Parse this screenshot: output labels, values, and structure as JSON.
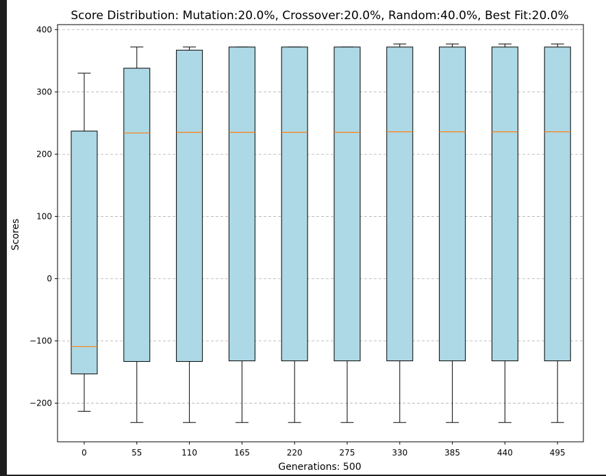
{
  "chart_data": {
    "type": "box",
    "title": "Score Distribution: Mutation:20.0%, Crossover:20.0%, Random:40.0%, Best Fit:20.0%",
    "xlabel": "Generations: 500",
    "ylabel": "Scores",
    "ylim": [
      -262,
      408
    ],
    "yticks": [
      400,
      300,
      200,
      100,
      0,
      -100,
      -200
    ],
    "ytick_labels": [
      "400",
      "300",
      "200",
      "100",
      "0",
      "−100",
      "−200"
    ],
    "grid": "horizontal-dashed",
    "box_color": "#add8e6",
    "median_color": "#ff7f0e",
    "categories": [
      "0",
      "55",
      "110",
      "165",
      "220",
      "275",
      "330",
      "385",
      "440",
      "495"
    ],
    "boxes": [
      {
        "whisker_low": -213,
        "q1": -153,
        "median": -109,
        "q3": 237,
        "whisker_high": 330
      },
      {
        "whisker_low": -231,
        "q1": -133,
        "median": 234,
        "q3": 338,
        "whisker_high": 372
      },
      {
        "whisker_low": -231,
        "q1": -133,
        "median": 235,
        "q3": 367,
        "whisker_high": 372
      },
      {
        "whisker_low": -231,
        "q1": -132,
        "median": 235,
        "q3": 372,
        "whisker_high": 372
      },
      {
        "whisker_low": -231,
        "q1": -132,
        "median": 235,
        "q3": 372,
        "whisker_high": 372
      },
      {
        "whisker_low": -231,
        "q1": -132,
        "median": 235,
        "q3": 372,
        "whisker_high": 372
      },
      {
        "whisker_low": -231,
        "q1": -132,
        "median": 236,
        "q3": 372,
        "whisker_high": 377
      },
      {
        "whisker_low": -231,
        "q1": -132,
        "median": 236,
        "q3": 372,
        "whisker_high": 377
      },
      {
        "whisker_low": -231,
        "q1": -132,
        "median": 236,
        "q3": 372,
        "whisker_high": 377
      },
      {
        "whisker_low": -231,
        "q1": -132,
        "median": 236,
        "q3": 372,
        "whisker_high": 377
      }
    ]
  }
}
